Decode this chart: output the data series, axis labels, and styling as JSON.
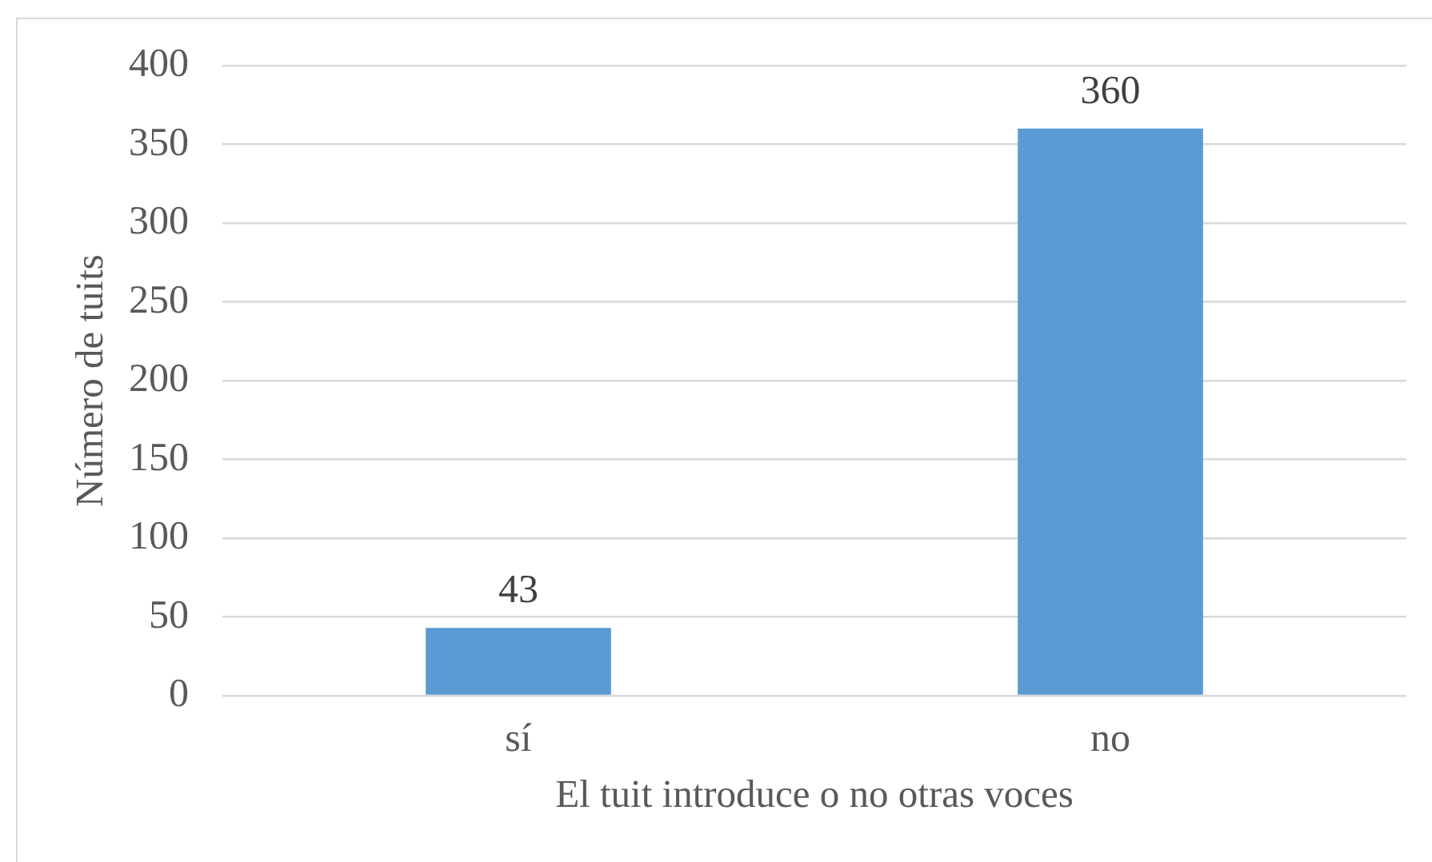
{
  "chart_data": {
    "type": "bar",
    "xlabel": "El tuit introduce o no otras voces",
    "ylabel": "Número de tuits",
    "categories": [
      "sí",
      "no"
    ],
    "values": [
      43,
      360
    ],
    "color": "#5b9bd5",
    "ylim": [
      0,
      400
    ],
    "yticks": [
      0,
      50,
      100,
      150,
      200,
      250,
      300,
      350,
      400
    ],
    "grid": "y",
    "data_labels": true
  }
}
